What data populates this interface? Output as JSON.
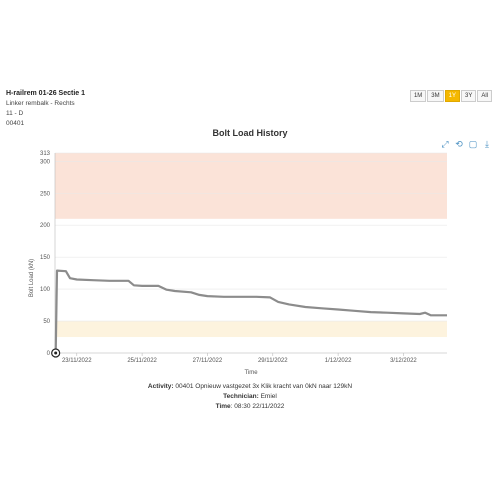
{
  "header": {
    "title": "H-railrem 01-26 Sectie 1",
    "line1": "Linker rembalk - Rechts",
    "line2": "11 - D",
    "line3": "00401"
  },
  "range_buttons": [
    "1M",
    "3M",
    "1Y",
    "3Y",
    "All"
  ],
  "range_active": "1Y",
  "tools": [
    {
      "icon": "zoom-reset-icon",
      "glyph": "⤢"
    },
    {
      "icon": "restore-icon",
      "glyph": "⟲"
    },
    {
      "icon": "fullscreen-icon",
      "glyph": "▢"
    },
    {
      "icon": "download-icon",
      "glyph": "⤓"
    }
  ],
  "footer": {
    "activity_label": "Activity:",
    "activity_value": " 00401 Opnieuw vastgezet 3x Klik kracht van 0kN naar 129kN",
    "technician_label": "Technician:",
    "technician_value": " Emiel",
    "time_label": "Time",
    "time_value": ": 08:30 22/11/2022"
  },
  "colors": {
    "line": "#8c8c8c",
    "band_upper": "#fbe3d8",
    "band_lower": "#fdf3de",
    "active": "#f5b800"
  },
  "chart_data": {
    "type": "line",
    "title": "Bolt Load History",
    "xlabel": "Time",
    "ylabel": "Bolt Load (kN)",
    "ylim": [
      0,
      313
    ],
    "yticks": [
      0,
      50,
      100,
      150,
      200,
      250,
      300,
      313
    ],
    "xlim": [
      "2022-11-22T08:00",
      "2022-12-04T08:00"
    ],
    "xticks": [
      "23/11/2022",
      "25/11/2022",
      "27/11/2022",
      "29/11/2022",
      "1/12/2022",
      "3/12/2022"
    ],
    "bands": [
      {
        "from": 210,
        "to": 313,
        "color": "upper"
      },
      {
        "from": 25,
        "to": 50,
        "color": "lower"
      }
    ],
    "marker": {
      "x": "2022-11-22T08:30",
      "y": 0
    },
    "series": [
      {
        "points": [
          [
            "2022-11-22T08:30",
            0
          ],
          [
            "2022-11-22T09:30",
            129
          ],
          [
            "2022-11-22T16:00",
            128
          ],
          [
            "2022-11-22T19:00",
            117
          ],
          [
            "2022-11-23T00:00",
            115
          ],
          [
            "2022-11-23T12:00",
            114
          ],
          [
            "2022-11-24T00:00",
            113
          ],
          [
            "2022-11-24T14:00",
            113
          ],
          [
            "2022-11-24T18:00",
            106
          ],
          [
            "2022-11-25T00:00",
            105
          ],
          [
            "2022-11-25T12:00",
            105
          ],
          [
            "2022-11-25T18:00",
            99
          ],
          [
            "2022-11-26T00:00",
            97
          ],
          [
            "2022-11-26T12:00",
            95
          ],
          [
            "2022-11-26T18:00",
            91
          ],
          [
            "2022-11-27T00:00",
            89
          ],
          [
            "2022-11-27T12:00",
            88
          ],
          [
            "2022-11-28T00:00",
            88
          ],
          [
            "2022-11-28T12:00",
            88
          ],
          [
            "2022-11-28T22:00",
            87
          ],
          [
            "2022-11-29T04:00",
            80
          ],
          [
            "2022-11-29T12:00",
            76
          ],
          [
            "2022-11-30T00:00",
            72
          ],
          [
            "2022-11-30T12:00",
            70
          ],
          [
            "2022-12-01T00:00",
            68
          ],
          [
            "2022-12-01T12:00",
            66
          ],
          [
            "2022-12-02T00:00",
            64
          ],
          [
            "2022-12-02T12:00",
            63
          ],
          [
            "2022-12-03T00:00",
            62
          ],
          [
            "2022-12-03T12:00",
            61
          ],
          [
            "2022-12-03T16:00",
            63
          ],
          [
            "2022-12-03T20:00",
            59
          ],
          [
            "2022-12-04T08:00",
            59
          ]
        ]
      }
    ]
  }
}
